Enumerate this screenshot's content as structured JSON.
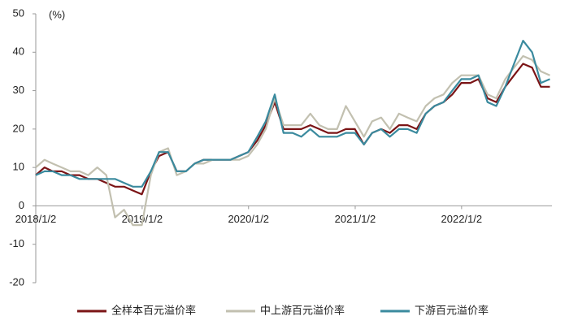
{
  "chart_data": {
    "type": "line",
    "y_unit_label": "(%)",
    "x": [
      "2018/1/2",
      "2018/2/1",
      "2018/3/1",
      "2018/4/1",
      "2018/5/1",
      "2018/6/1",
      "2018/7/1",
      "2018/8/1",
      "2018/9/1",
      "2018/10/1",
      "2018/11/1",
      "2018/12/1",
      "2019/1/1",
      "2019/2/1",
      "2019/3/1",
      "2019/4/1",
      "2019/5/1",
      "2019/6/1",
      "2019/7/1",
      "2019/8/1",
      "2019/9/1",
      "2019/10/1",
      "2019/11/1",
      "2019/12/1",
      "2020/1/1",
      "2020/2/1",
      "2020/3/1",
      "2020/4/1",
      "2020/5/1",
      "2020/6/1",
      "2020/7/1",
      "2020/8/1",
      "2020/9/1",
      "2020/10/1",
      "2020/11/1",
      "2020/12/1",
      "2021/1/1",
      "2021/2/1",
      "2021/3/1",
      "2021/4/1",
      "2021/5/1",
      "2021/6/1",
      "2021/7/1",
      "2021/8/1",
      "2021/9/1",
      "2021/10/1",
      "2021/11/1",
      "2021/12/1",
      "2022/1/1",
      "2022/2/1",
      "2022/3/1",
      "2022/4/1",
      "2022/5/1",
      "2022/6/1",
      "2022/7/1",
      "2022/8/1",
      "2022/9/1",
      "2022/10/1",
      "2022/11/1"
    ],
    "series": [
      {
        "name": "全样本百元溢价率",
        "color": "#7b1416",
        "values": [
          8,
          10,
          9,
          9,
          8,
          8,
          7,
          7,
          6,
          5,
          5,
          4,
          3,
          9,
          13,
          14,
          9,
          9,
          11,
          12,
          12,
          12,
          12,
          13,
          14,
          17,
          21,
          27,
          20,
          20,
          20,
          21,
          20,
          19,
          19,
          20,
          20,
          16,
          19,
          20,
          19,
          21,
          21,
          20,
          24,
          26,
          27,
          29,
          32,
          32,
          33,
          28,
          27,
          31,
          34,
          37,
          36,
          31,
          31
        ]
      },
      {
        "name": "中上游百元溢价率",
        "color": "#c2c0b0",
        "values": [
          10,
          12,
          11,
          10,
          9,
          9,
          8,
          10,
          8,
          -3,
          -1,
          -5,
          -5,
          8,
          14,
          15,
          8,
          9,
          11,
          11,
          12,
          12,
          12,
          12,
          13,
          16,
          20,
          28,
          21,
          21,
          21,
          24,
          21,
          20,
          20,
          26,
          22,
          18,
          22,
          23,
          20,
          24,
          23,
          22,
          26,
          28,
          29,
          32,
          34,
          34,
          34,
          29,
          28,
          33,
          36,
          39,
          38,
          35,
          34
        ]
      },
      {
        "name": "下游百元溢价率",
        "color": "#3a8a9e",
        "values": [
          8,
          9,
          9,
          8,
          8,
          7,
          7,
          7,
          7,
          7,
          6,
          5,
          5,
          9,
          14,
          14,
          9,
          9,
          11,
          12,
          12,
          12,
          12,
          13,
          14,
          18,
          22,
          29,
          19,
          19,
          18,
          20,
          18,
          18,
          18,
          19,
          19,
          16,
          19,
          20,
          18,
          20,
          20,
          19,
          24,
          26,
          27,
          30,
          33,
          33,
          34,
          27,
          26,
          31,
          37,
          43,
          40,
          32,
          33
        ]
      }
    ],
    "xlim": [
      "2018/1/2",
      "2022/11/8"
    ],
    "xticks": [
      "2018/1/2",
      "2019/1/2",
      "2020/1/2",
      "2021/1/2",
      "2022/1/2"
    ],
    "ylim": [
      -20,
      50
    ],
    "yticks": [
      -20,
      -10,
      0,
      10,
      20,
      30,
      40,
      50
    ],
    "grid": false,
    "legend": "bottom"
  }
}
